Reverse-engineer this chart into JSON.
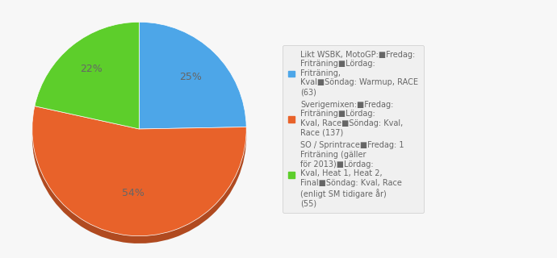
{
  "values": [
    63,
    137,
    55
  ],
  "colors": [
    "#4da6e8",
    "#e8622a",
    "#5dce2b"
  ],
  "shadow_colors": [
    "#3a7db0",
    "#b04a20",
    "#45a020"
  ],
  "percentages": [
    "25%",
    "54%",
    "22%"
  ],
  "pct_angles": [
    -45,
    180,
    68
  ],
  "pct_r": [
    0.68,
    0.55,
    0.72
  ],
  "legend_labels": [
    "Likt WSBK, MotoGP:■Fredag:\nFriträning■Lördag:\nFriträning,\nKval■Söndag: Warmup, RACE\n(63)",
    "Sverigemixen:■Fredag:\nFriträning■Lördag:\nKval, Race■Söndag: Kval,\nRace (137)",
    "SO / Sprintrace■Fredag: 1\nFriträning (gäller\nför 2013)■Lördag:\nKval, Heat 1, Heat 2,\nFinal■Söndag: Kval, Race\n(enligt SM tidigare år)\n(55)"
  ],
  "background_color": "#f7f7f7",
  "legend_box_color": "#f0f0f0",
  "text_color": "#666666",
  "startangle": 90,
  "shadow_depth": 0.07
}
